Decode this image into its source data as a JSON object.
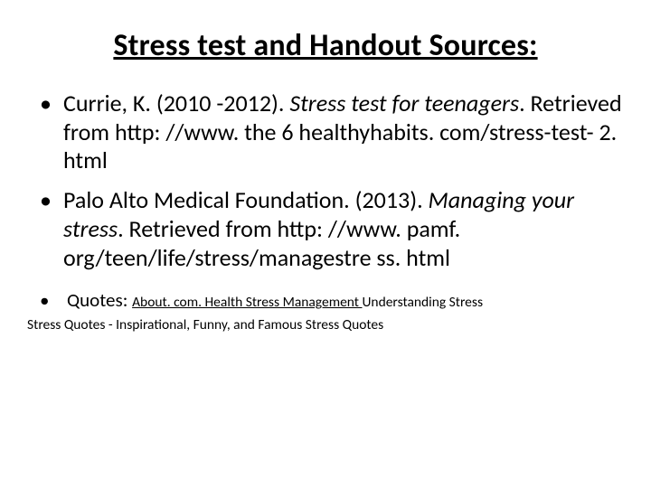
{
  "colors": {
    "background": "#ffffff",
    "text": "#000000"
  },
  "typography": {
    "family": "Calibri",
    "title_size_pt": 34,
    "title_weight": 700,
    "body_size_pt": 26,
    "small_size_pt": 15.5,
    "quotes_label_size_pt": 21
  },
  "title": "Stress test and Handout Sources:",
  "bullets": [
    {
      "author_year": "Currie, K. (2010 -2012). ",
      "italic_title": "Stress test for teenagers",
      "after": ". Retrieved from http: //www. the 6 healthyhabits. com/stress-test- 2. html"
    },
    {
      "author_year": "Palo Alto Medical Foundation. (2013). ",
      "italic_title": "Managing your stress",
      "after": ". Retrieved from http: //www. pamf. org/teen/life/stress/managestre ss. html"
    }
  ],
  "quotes": {
    "label": "Quotes: ",
    "link1": "About. com.",
    "link2": " Health Stress Management ",
    "tail": "Understanding Stress"
  },
  "footer": "Stress Quotes - Inspirational, Funny, and Famous Stress Quotes"
}
